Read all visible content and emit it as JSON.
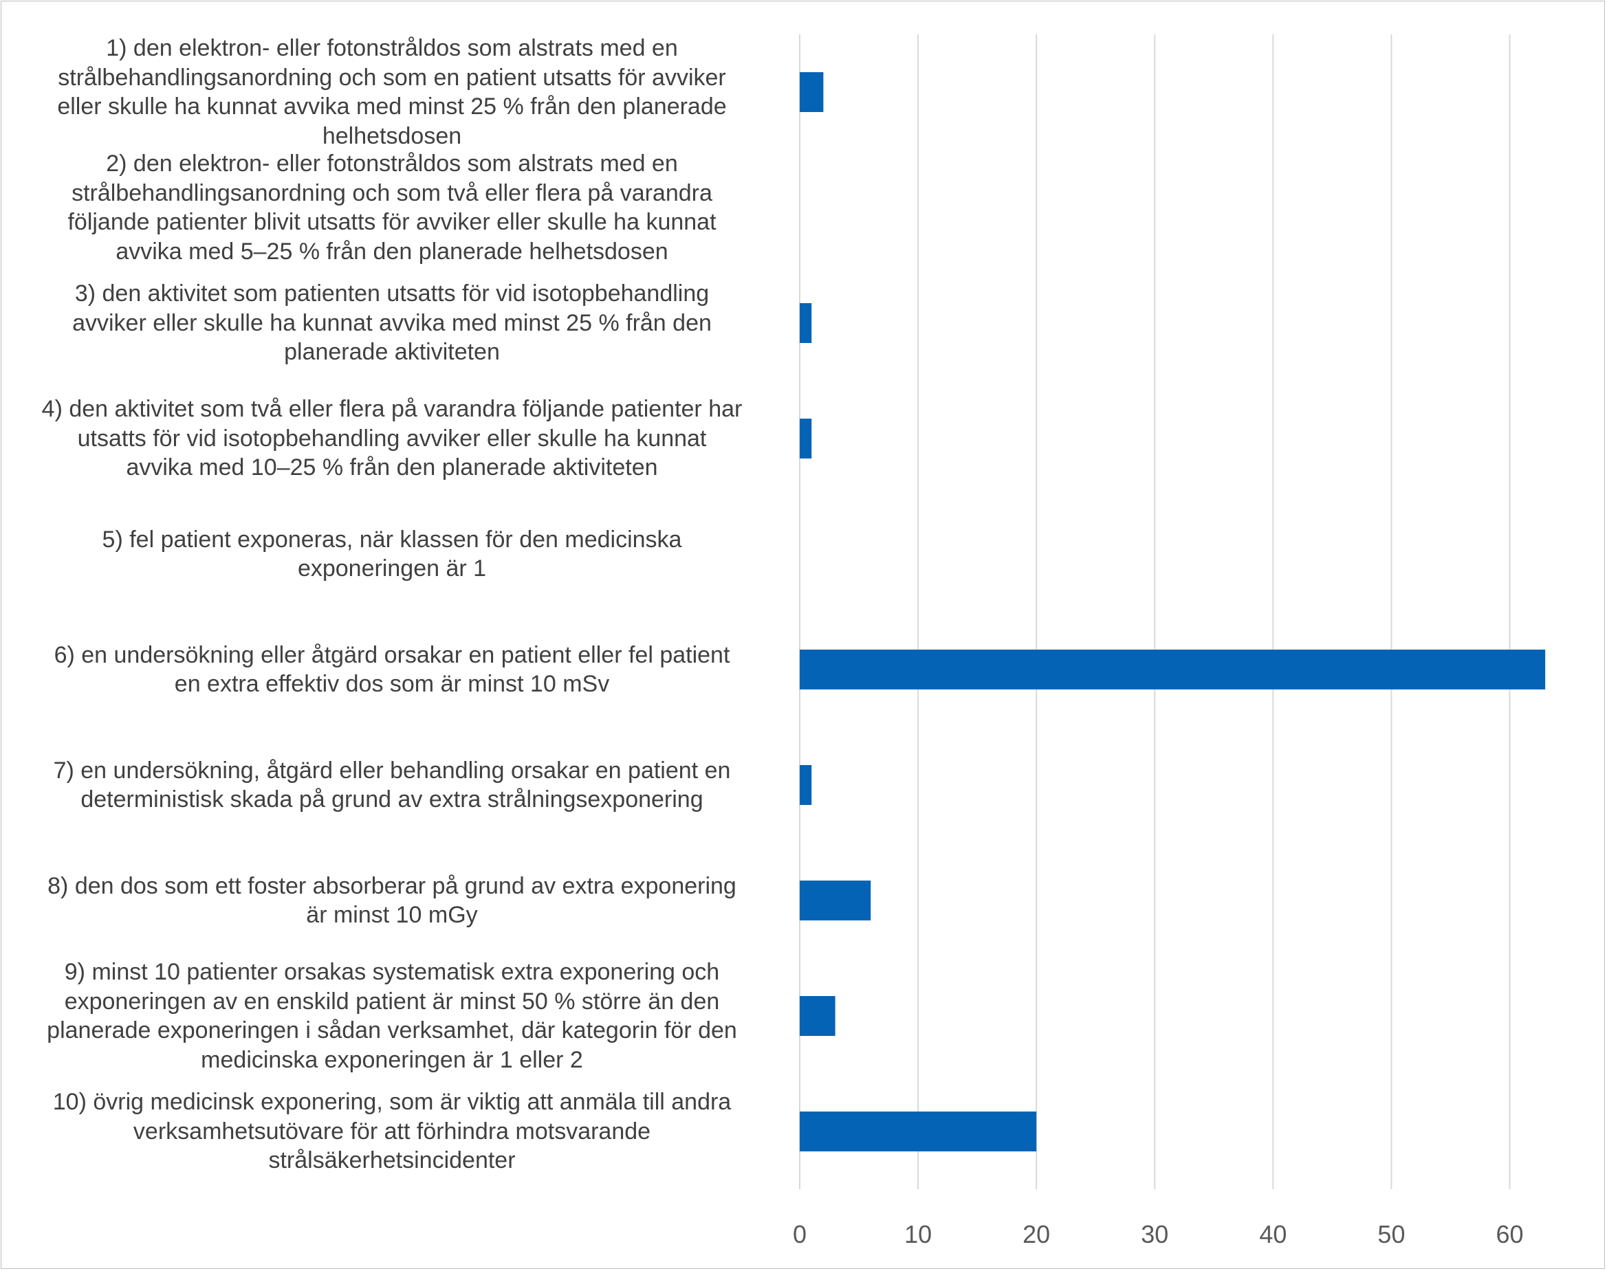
{
  "chart_data": {
    "type": "bar",
    "orientation": "horizontal",
    "categories": [
      "1)  den elektron- eller fotonstråldos som alstrats med en strålbehandlingsanordning och som en patient utsatts för avviker eller skulle ha kunnat avvika med minst 25 % från den planerade helhetsdosen",
      "2) den elektron- eller fotonstråldos som alstrats med en strålbehandlingsanordning och som två eller flera på varandra följande patienter blivit utsatts för avviker eller skulle ha kunnat avvika med 5–25 % från den planerade helhetsdosen",
      "3) den aktivitet som patienten utsatts för vid isotopbehandling avviker eller skulle ha kunnat avvika med minst 25 % från den planerade aktiviteten",
      "4) den aktivitet som två eller flera på varandra följande patienter har utsatts för vid isotopbehandling avviker eller skulle ha kunnat avvika med 10–25 % från den planerade aktiviteten",
      "5) fel patient exponeras, när klassen för den medicinska exponeringen är 1",
      "6) en undersökning eller åtgärd orsakar en patient eller fel patient en extra effektiv dos som är minst 10 mSv",
      "7) en undersökning, åtgärd eller behandling orsakar en patient en deterministisk skada på grund av extra strålningsexponering",
      "8) den dos som ett foster absorberar på grund av extra exponering är minst 10 mGy",
      "9) minst 10 patienter orsakas systematisk extra exponering och exponeringen av en enskild patient är minst 50 % större än den planerade exponeringen i sådan verksamhet, där kategorin för den medicinska exponeringen är 1 eller 2",
      "10) övrig medicinsk exponering, som är viktig att anmäla till andra verksamhetsutövare för att förhindra motsvarande strålsäkerhetsincidenter"
    ],
    "category_lines": [
      [
        "1)  den elektron- eller fotonstråldos som alstrats med en",
        "strålbehandlingsanordning och som en patient utsatts för avviker",
        "eller skulle ha kunnat avvika med minst 25 % från den planerade",
        "helhetsdosen"
      ],
      [
        "2) den elektron- eller fotonstråldos som alstrats med en",
        "strålbehandlingsanordning och som två eller flera på varandra",
        "följande patienter blivit utsatts för avviker eller skulle ha kunnat",
        "avvika med 5–25 % från den planerade helhetsdosen"
      ],
      [
        "3) den aktivitet som patienten utsatts för vid isotopbehandling",
        "avviker eller skulle ha kunnat avvika med minst 25 % från den",
        "planerade aktiviteten"
      ],
      [
        "4) den aktivitet som två eller flera på varandra följande patienter har",
        "utsatts för vid isotopbehandling avviker eller skulle ha kunnat",
        "avvika med 10–25 % från den planerade aktiviteten"
      ],
      [
        "5) fel patient exponeras, när klassen för den medicinska",
        "exponeringen är 1"
      ],
      [
        "6) en undersökning eller åtgärd orsakar en patient eller fel patient",
        "en extra effektiv dos som är minst 10 mSv"
      ],
      [
        "7) en undersökning, åtgärd eller behandling orsakar en patient en",
        "deterministisk skada på grund av extra strålningsexponering"
      ],
      [
        "8) den dos som ett foster absorberar på grund av extra exponering",
        "är minst 10 mGy"
      ],
      [
        "9) minst 10 patienter orsakas systematisk extra exponering och",
        "exponeringen av en enskild patient är minst 50 % större än den",
        "planerade exponeringen i sådan verksamhet, där kategorin för den",
        "medicinska exponeringen är 1 eller 2"
      ],
      [
        "10) övrig medicinsk exponering, som är viktig att anmäla till andra",
        "verksamhetsutövare för att förhindra motsvarande",
        "strålsäkerhetsincidenter"
      ]
    ],
    "values": [
      2,
      0,
      1,
      1,
      0,
      63,
      1,
      6,
      3,
      20
    ],
    "xlim": [
      0,
      67
    ],
    "x_ticks": [
      0,
      10,
      20,
      30,
      40,
      50,
      60
    ],
    "title": "",
    "xlabel": "",
    "ylabel": "",
    "grid": "vertical",
    "legend": "none",
    "bar_color": "#0563b6",
    "grid_color": "#d9d9d9",
    "label_color": "#404040",
    "tick_color": "#595959"
  }
}
